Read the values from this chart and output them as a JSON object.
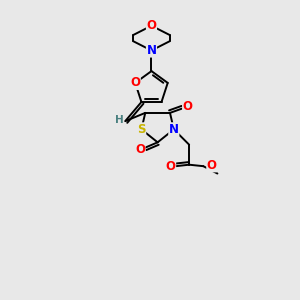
{
  "bg_color": "#e8e8e8",
  "atom_colors": {
    "O": "#ff0000",
    "N": "#0000ff",
    "S": "#c8b400",
    "C": "#000000",
    "H": "#4a8080"
  },
  "bond_color": "#000000",
  "lw": 1.4,
  "fs": 8.5
}
